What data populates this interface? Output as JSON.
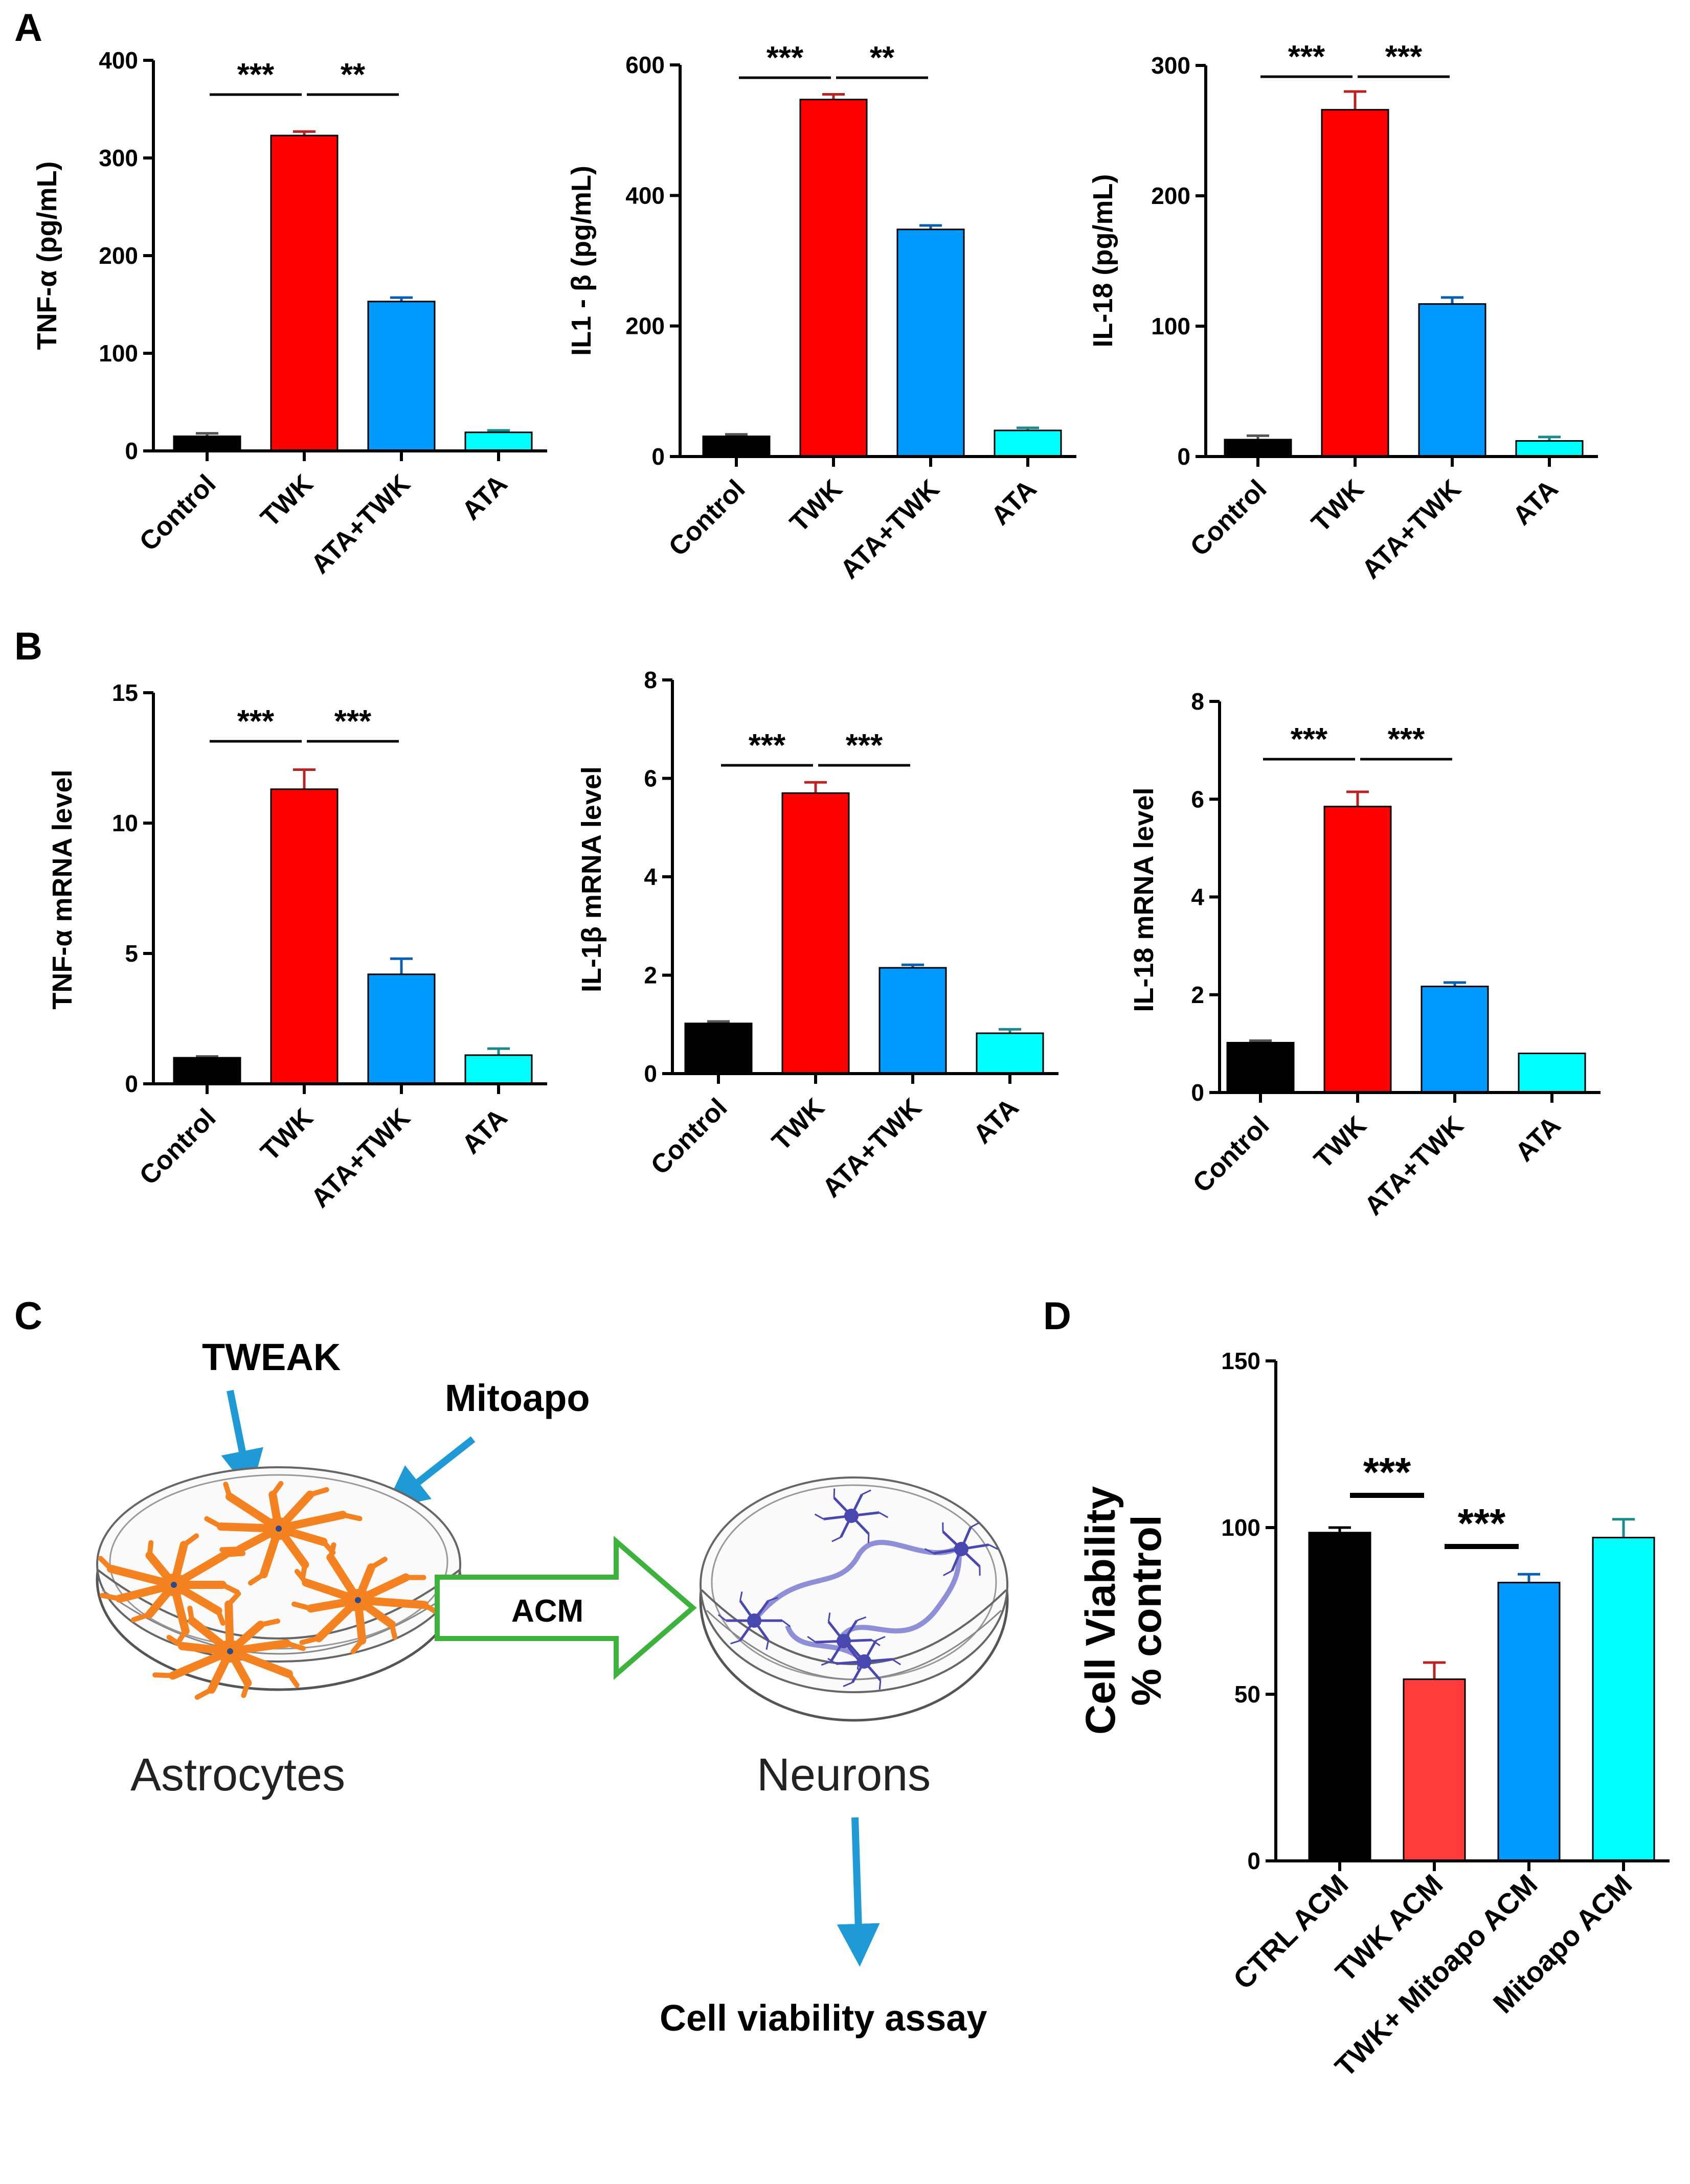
{
  "panels": {
    "A": "A",
    "B": "B",
    "C": "C",
    "D": "D"
  },
  "colors": {
    "control": "#000000",
    "twk": "#ff0000",
    "ata_twk": "#0099ff",
    "ata": "#00ffff",
    "twk_acm_d": "#ff3b3b",
    "astrocyte": "#f58220",
    "neuron": "#4848b0",
    "arrow_blue": "#1f9ad6",
    "arrow_green": "#3db23d"
  },
  "chart_data": [
    {
      "panel": "A",
      "type": "bar",
      "categories": [
        "Control",
        "TWK",
        "ATA+TWK",
        "ATA"
      ],
      "values": [
        15,
        323,
        153,
        19
      ],
      "errors": [
        3,
        4,
        4,
        2
      ],
      "ylabel": "TNF-α (pg/mL)",
      "ylim": [
        0,
        400
      ],
      "yticks": [
        0,
        100,
        200,
        300,
        400
      ],
      "significance": [
        {
          "from": 0,
          "to": 1,
          "label": "***"
        },
        {
          "from": 1,
          "to": 2,
          "label": "**"
        }
      ]
    },
    {
      "panel": "A",
      "type": "bar",
      "categories": [
        "Control",
        "TWK",
        "ATA+TWK",
        "ATA"
      ],
      "values": [
        31,
        547,
        348,
        40
      ],
      "errors": [
        3,
        8,
        6,
        4
      ],
      "ylabel": "IL1 - β (pg/mL)",
      "ylim": [
        0,
        600
      ],
      "yticks": [
        0,
        200,
        400,
        600
      ],
      "significance": [
        {
          "from": 0,
          "to": 1,
          "label": "***"
        },
        {
          "from": 1,
          "to": 2,
          "label": "**"
        }
      ]
    },
    {
      "panel": "A",
      "type": "bar",
      "categories": [
        "Control",
        "TWK",
        "ATA+TWK",
        "ATA"
      ],
      "values": [
        13,
        266,
        117,
        12
      ],
      "errors": [
        3,
        14,
        5,
        3
      ],
      "ylabel": "IL-18 (pg/mL)",
      "ylim": [
        0,
        300
      ],
      "yticks": [
        0,
        100,
        200,
        300
      ],
      "significance": [
        {
          "from": 0,
          "to": 1,
          "label": "***"
        },
        {
          "from": 1,
          "to": 2,
          "label": "***"
        }
      ]
    },
    {
      "panel": "B",
      "type": "bar",
      "categories": [
        "Control",
        "TWK",
        "ATA+TWK",
        "ATA"
      ],
      "values": [
        1.0,
        11.3,
        4.2,
        1.1
      ],
      "errors": [
        0.05,
        0.75,
        0.6,
        0.25
      ],
      "ylabel": "TNF-α mRNA level",
      "ylim": [
        0,
        15
      ],
      "yticks": [
        0,
        5,
        10,
        15
      ],
      "significance": [
        {
          "from": 0,
          "to": 1,
          "label": "***"
        },
        {
          "from": 1,
          "to": 2,
          "label": "***"
        }
      ]
    },
    {
      "panel": "B",
      "type": "bar",
      "categories": [
        "Control",
        "TWK",
        "ATA+TWK",
        "ATA"
      ],
      "values": [
        1.02,
        5.7,
        2.15,
        0.82
      ],
      "errors": [
        0.04,
        0.22,
        0.06,
        0.08
      ],
      "ylabel": "IL-1β mRNA level",
      "ylim": [
        0,
        8
      ],
      "yticks": [
        0,
        2,
        4,
        6,
        8
      ],
      "significance": [
        {
          "from": 0,
          "to": 1,
          "label": "***"
        },
        {
          "from": 1,
          "to": 2,
          "label": "***"
        }
      ]
    },
    {
      "panel": "B",
      "type": "bar",
      "categories": [
        "Control",
        "TWK",
        "ATA+TWK",
        "ATA"
      ],
      "values": [
        1.02,
        5.85,
        2.17,
        0.8
      ],
      "errors": [
        0.04,
        0.3,
        0.08,
        0.0
      ],
      "ylabel": "IL-18 mRNA level",
      "ylim": [
        0,
        8
      ],
      "yticks": [
        0,
        2,
        4,
        6,
        8
      ],
      "significance": [
        {
          "from": 0,
          "to": 1,
          "label": "***"
        },
        {
          "from": 1,
          "to": 2,
          "label": "***"
        }
      ]
    },
    {
      "panel": "D",
      "type": "bar",
      "categories": [
        "CTRL ACM",
        "TWK ACM",
        "TWK+ Mitoapo ACM",
        "Mitoapo ACM"
      ],
      "values": [
        98.5,
        54.5,
        83.5,
        97
      ],
      "errors": [
        1.5,
        5,
        2.5,
        5.5
      ],
      "ylabel_lines": [
        "Cell Viability",
        "% control"
      ],
      "ylim": [
        0,
        150
      ],
      "yticks": [
        0,
        50,
        100,
        150
      ],
      "significance": [
        {
          "from": 0,
          "to": 1,
          "label": "***"
        },
        {
          "from": 1,
          "to": 2,
          "label": "***"
        }
      ]
    }
  ],
  "diagram": {
    "tweak": "TWEAK",
    "mitoapo": "Mitoapo",
    "acm": "ACM",
    "astrocytes": "Astrocytes",
    "neurons": "Neurons",
    "assay": "Cell viability assay"
  }
}
